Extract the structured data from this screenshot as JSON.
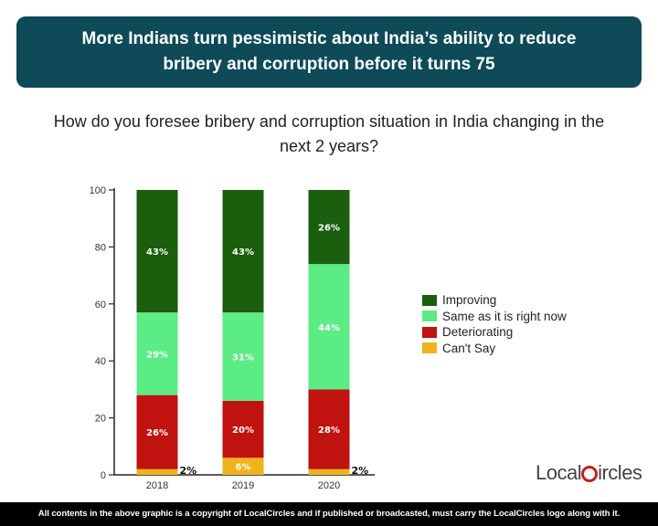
{
  "header": {
    "title": "More Indians turn pessimistic about India’s ability to reduce bribery and corruption before it turns 75"
  },
  "question": "How do you foresee bribery and corruption situation in India changing in the next 2 years?",
  "chart_data": {
    "type": "bar",
    "stacked": true,
    "categories": [
      "2018",
      "2019",
      "2020"
    ],
    "ylim": [
      0,
      100
    ],
    "yticks": [
      "0",
      "20",
      "40",
      "60",
      "80",
      "100"
    ],
    "grid": false,
    "legend_placement": "right",
    "series": [
      {
        "name": "Can't Say",
        "values": [
          2,
          6,
          2
        ],
        "labels": [
          "2%",
          "6%",
          "2%"
        ],
        "color": "#f0b31c"
      },
      {
        "name": "Deteriorating",
        "values": [
          26,
          20,
          28
        ],
        "labels": [
          "26%",
          "20%",
          "28%"
        ],
        "color": "#c0120f"
      },
      {
        "name": "Same as it is right now",
        "values": [
          29,
          31,
          44
        ],
        "labels": [
          "29%",
          "31%",
          "44%"
        ],
        "color": "#5cec85"
      },
      {
        "name": "Improving",
        "values": [
          43,
          43,
          26
        ],
        "labels": [
          "43%",
          "43%",
          "26%"
        ],
        "color": "#1b5e0d"
      }
    ]
  },
  "legend": [
    {
      "label": "Improving",
      "color": "#1b5e0d"
    },
    {
      "label": "Same as it is right now",
      "color": "#5cec85"
    },
    {
      "label": "Deteriorating",
      "color": "#c0120f"
    },
    {
      "label": "Can't Say",
      "color": "#f0b31c"
    }
  ],
  "logo": {
    "text_left": "Local",
    "text_right": "ircles",
    "brand": "LocalCircles"
  },
  "footer": "All contents in the above graphic is a copyright of LocalCircles and if published or broadcasted, must carry the LocalCircles logo along with it."
}
